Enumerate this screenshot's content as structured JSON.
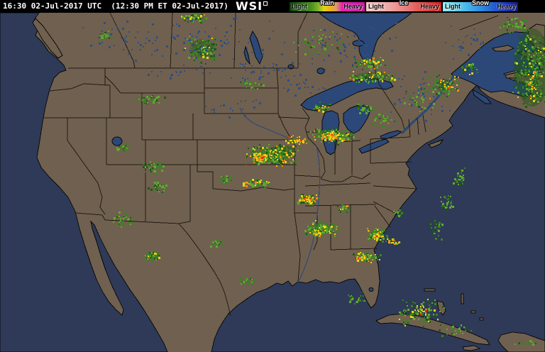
{
  "header": {
    "timestamp": "16:30 02-Jul-2017 UTC  (12:30 PM ET 02-Jul-2017)",
    "brand": "WSI",
    "bar_bg": "#000000",
    "bar_fg": "#FFFFFF",
    "legend": [
      {
        "name": "Rain",
        "light_label": "Light",
        "heavy_label": "Heavy",
        "stops": [
          {
            "c": "#0E3D0A",
            "p": 0
          },
          {
            "c": "#1D5C10",
            "p": 10
          },
          {
            "c": "#2F7A18",
            "p": 20
          },
          {
            "c": "#4E9420",
            "p": 30
          },
          {
            "c": "#7DB32C",
            "p": 38
          },
          {
            "c": "#E8D40E",
            "p": 46
          },
          {
            "c": "#EFAE1C",
            "p": 55
          },
          {
            "c": "#D9A066",
            "p": 62
          },
          {
            "c": "#E320B4",
            "p": 70
          },
          {
            "c": "#C8189E",
            "p": 100
          }
        ]
      },
      {
        "name": "Ice",
        "light_label": "Light",
        "heavy_label": "Heavy",
        "stops": [
          {
            "c": "#F2CBC9",
            "p": 0
          },
          {
            "c": "#EFA8A6",
            "p": 30
          },
          {
            "c": "#E87A78",
            "p": 55
          },
          {
            "c": "#E04845",
            "p": 78
          },
          {
            "c": "#D32020",
            "p": 100
          }
        ]
      },
      {
        "name": "Snow",
        "light_label": "Light",
        "heavy_label": "Heavy",
        "stops": [
          {
            "c": "#97F0F2",
            "p": 0
          },
          {
            "c": "#54C4EE",
            "p": 25
          },
          {
            "c": "#2E8EE0",
            "p": 50
          },
          {
            "c": "#2358CC",
            "p": 70
          },
          {
            "c": "#1B2FC0",
            "p": 85
          },
          {
            "c": "#131C72",
            "p": 100
          }
        ]
      }
    ]
  },
  "map": {
    "colors": {
      "land": "#70604F",
      "ocean": "#2E3A58",
      "lake": "#2B4878",
      "coast": "#0B0A08",
      "border": "#1A140E"
    },
    "radar_palette": {
      "g_dark": "#1F5715",
      "g_mid": "#3B8221",
      "g_light": "#62A832",
      "yellow": "#EDD211",
      "orange": "#EE8C14",
      "red": "#DC3510",
      "lake_dot": "#2E4F82"
    },
    "mixes": {
      "sparse_green": {
        "g_dark": 0.2,
        "g_mid": 0.45,
        "g_light": 0.35
      },
      "dense_green": {
        "g_dark": 0.38,
        "g_mid": 0.4,
        "g_light": 0.18,
        "yellow": 0.04
      },
      "green_yellow": {
        "g_dark": 0.2,
        "g_mid": 0.4,
        "g_light": 0.25,
        "yellow": 0.12,
        "orange": 0.03
      },
      "storm": {
        "g_dark": 0.3,
        "g_mid": 0.3,
        "g_light": 0.17,
        "yellow": 0.15,
        "orange": 0.06,
        "red": 0.02
      },
      "yellow_core": {
        "g_mid": 0.18,
        "g_light": 0.15,
        "yellow": 0.42,
        "orange": 0.2,
        "red": 0.05
      },
      "blue_lakes": {
        "lake_dot": 1
      }
    },
    "echo_cores": [
      [
        385,
        218,
        26,
        10,
        "g_mid",
        0.7
      ],
      [
        398,
        212,
        18,
        7,
        "g_dark",
        0.5
      ],
      [
        466,
        190,
        22,
        7,
        "g_mid",
        0.55
      ],
      [
        524,
        108,
        24,
        6,
        "g_dark",
        0.4
      ],
      [
        452,
        322,
        15,
        7,
        "g_mid",
        0.55
      ],
      [
        433,
        280,
        9,
        5,
        "g_mid",
        0.55
      ],
      [
        750,
        95,
        26,
        55,
        "g_dark",
        0.45
      ],
      [
        530,
        330,
        9,
        5,
        "g_mid",
        0.5
      ],
      [
        625,
        120,
        12,
        9,
        "g_dark",
        0.35
      ],
      [
        215,
        360,
        9,
        5,
        "g_mid",
        0.55
      ],
      [
        285,
        68,
        17,
        13,
        "g_dark",
        0.4
      ]
    ],
    "echo_clusters": [
      [
        272,
        24,
        20,
        8,
        60,
        "green_yellow"
      ],
      [
        285,
        68,
        26,
        22,
        150,
        "dense_green"
      ],
      [
        148,
        50,
        12,
        8,
        30,
        "sparse_green"
      ],
      [
        210,
        139,
        24,
        7,
        45,
        "sparse_green"
      ],
      [
        520,
        88,
        28,
        10,
        80,
        "green_yellow"
      ],
      [
        524,
        108,
        38,
        9,
        110,
        "green_yellow"
      ],
      [
        452,
        150,
        14,
        8,
        45,
        "storm"
      ],
      [
        468,
        190,
        34,
        12,
        150,
        "green_yellow"
      ],
      [
        462,
        191,
        20,
        6,
        55,
        "yellow_core"
      ],
      [
        512,
        152,
        14,
        8,
        40,
        "sparse_green"
      ],
      [
        540,
        170,
        22,
        12,
        40,
        "sparse_green"
      ],
      [
        385,
        218,
        44,
        16,
        260,
        "storm"
      ],
      [
        418,
        196,
        17,
        7,
        50,
        "yellow_core"
      ],
      [
        368,
        222,
        14,
        6,
        45,
        "yellow_core"
      ],
      [
        362,
        258,
        20,
        8,
        70,
        "green_yellow"
      ],
      [
        346,
        258,
        6,
        4,
        14,
        "yellow_core"
      ],
      [
        318,
        252,
        12,
        6,
        28,
        "sparse_green"
      ],
      [
        215,
        235,
        18,
        10,
        50,
        "sparse_green"
      ],
      [
        222,
        262,
        16,
        9,
        40,
        "sparse_green"
      ],
      [
        172,
        206,
        9,
        6,
        22,
        "sparse_green"
      ],
      [
        172,
        308,
        18,
        12,
        45,
        "sparse_green"
      ],
      [
        215,
        360,
        14,
        7,
        50,
        "dense_green"
      ],
      [
        433,
        280,
        16,
        9,
        85,
        "storm"
      ],
      [
        432,
        279,
        9,
        5,
        30,
        "yellow_core"
      ],
      [
        483,
        293,
        11,
        6,
        28,
        "green_yellow"
      ],
      [
        452,
        322,
        25,
        12,
        140,
        "green_yellow"
      ],
      [
        444,
        327,
        10,
        6,
        30,
        "yellow_core"
      ],
      [
        530,
        330,
        17,
        10,
        85,
        "green_yellow"
      ],
      [
        531,
        332,
        8,
        5,
        22,
        "yellow_core"
      ],
      [
        553,
        340,
        9,
        5,
        26,
        "yellow_core"
      ],
      [
        516,
        362,
        21,
        7,
        75,
        "green_yellow"
      ],
      [
        505,
        363,
        7,
        4,
        14,
        "yellow_core"
      ],
      [
        560,
        300,
        9,
        6,
        16,
        "sparse_green"
      ],
      [
        648,
        250,
        13,
        16,
        35,
        "sparse_green"
      ],
      [
        628,
        285,
        12,
        14,
        30,
        "sparse_green"
      ],
      [
        612,
        322,
        12,
        14,
        30,
        "sparse_green"
      ],
      [
        592,
        440,
        34,
        22,
        120,
        "green_yellow"
      ],
      [
        594,
        438,
        7,
        6,
        16,
        "yellow_core"
      ],
      [
        625,
        120,
        26,
        22,
        95,
        "green_yellow"
      ],
      [
        631,
        122,
        7,
        4,
        16,
        "yellow_core"
      ],
      [
        660,
        95,
        13,
        10,
        32,
        "green_yellow"
      ],
      [
        750,
        95,
        28,
        60,
        380,
        "dense_green"
      ],
      [
        748,
        122,
        10,
        26,
        28,
        "yellow_core"
      ],
      [
        722,
        35,
        24,
        13,
        70,
        "sparse_green"
      ],
      [
        590,
        140,
        26,
        20,
        45,
        "sparse_green"
      ],
      [
        450,
        60,
        45,
        25,
        55,
        "sparse_green"
      ],
      [
        352,
        118,
        22,
        8,
        30,
        "sparse_green"
      ],
      [
        305,
        342,
        11,
        6,
        26,
        "sparse_green"
      ],
      [
        345,
        395,
        13,
        5,
        20,
        "sparse_green"
      ],
      [
        500,
        420,
        16,
        10,
        22,
        "sparse_green"
      ],
      [
        640,
        465,
        28,
        11,
        28,
        "sparse_green"
      ],
      [
        740,
        482,
        20,
        7,
        14,
        "sparse_green"
      ]
    ],
    "lake_speckles": [
      [
        300,
        55,
        110,
        35,
        70
      ],
      [
        480,
        65,
        90,
        40,
        60
      ],
      [
        598,
        135,
        55,
        45,
        42
      ],
      [
        660,
        60,
        40,
        30,
        28
      ],
      [
        370,
        100,
        70,
        18,
        40
      ],
      [
        180,
        55,
        80,
        35,
        40
      ],
      [
        430,
        120,
        45,
        15,
        20
      ],
      [
        250,
        100,
        60,
        12,
        18
      ],
      [
        320,
        150,
        60,
        20,
        18
      ]
    ]
  }
}
